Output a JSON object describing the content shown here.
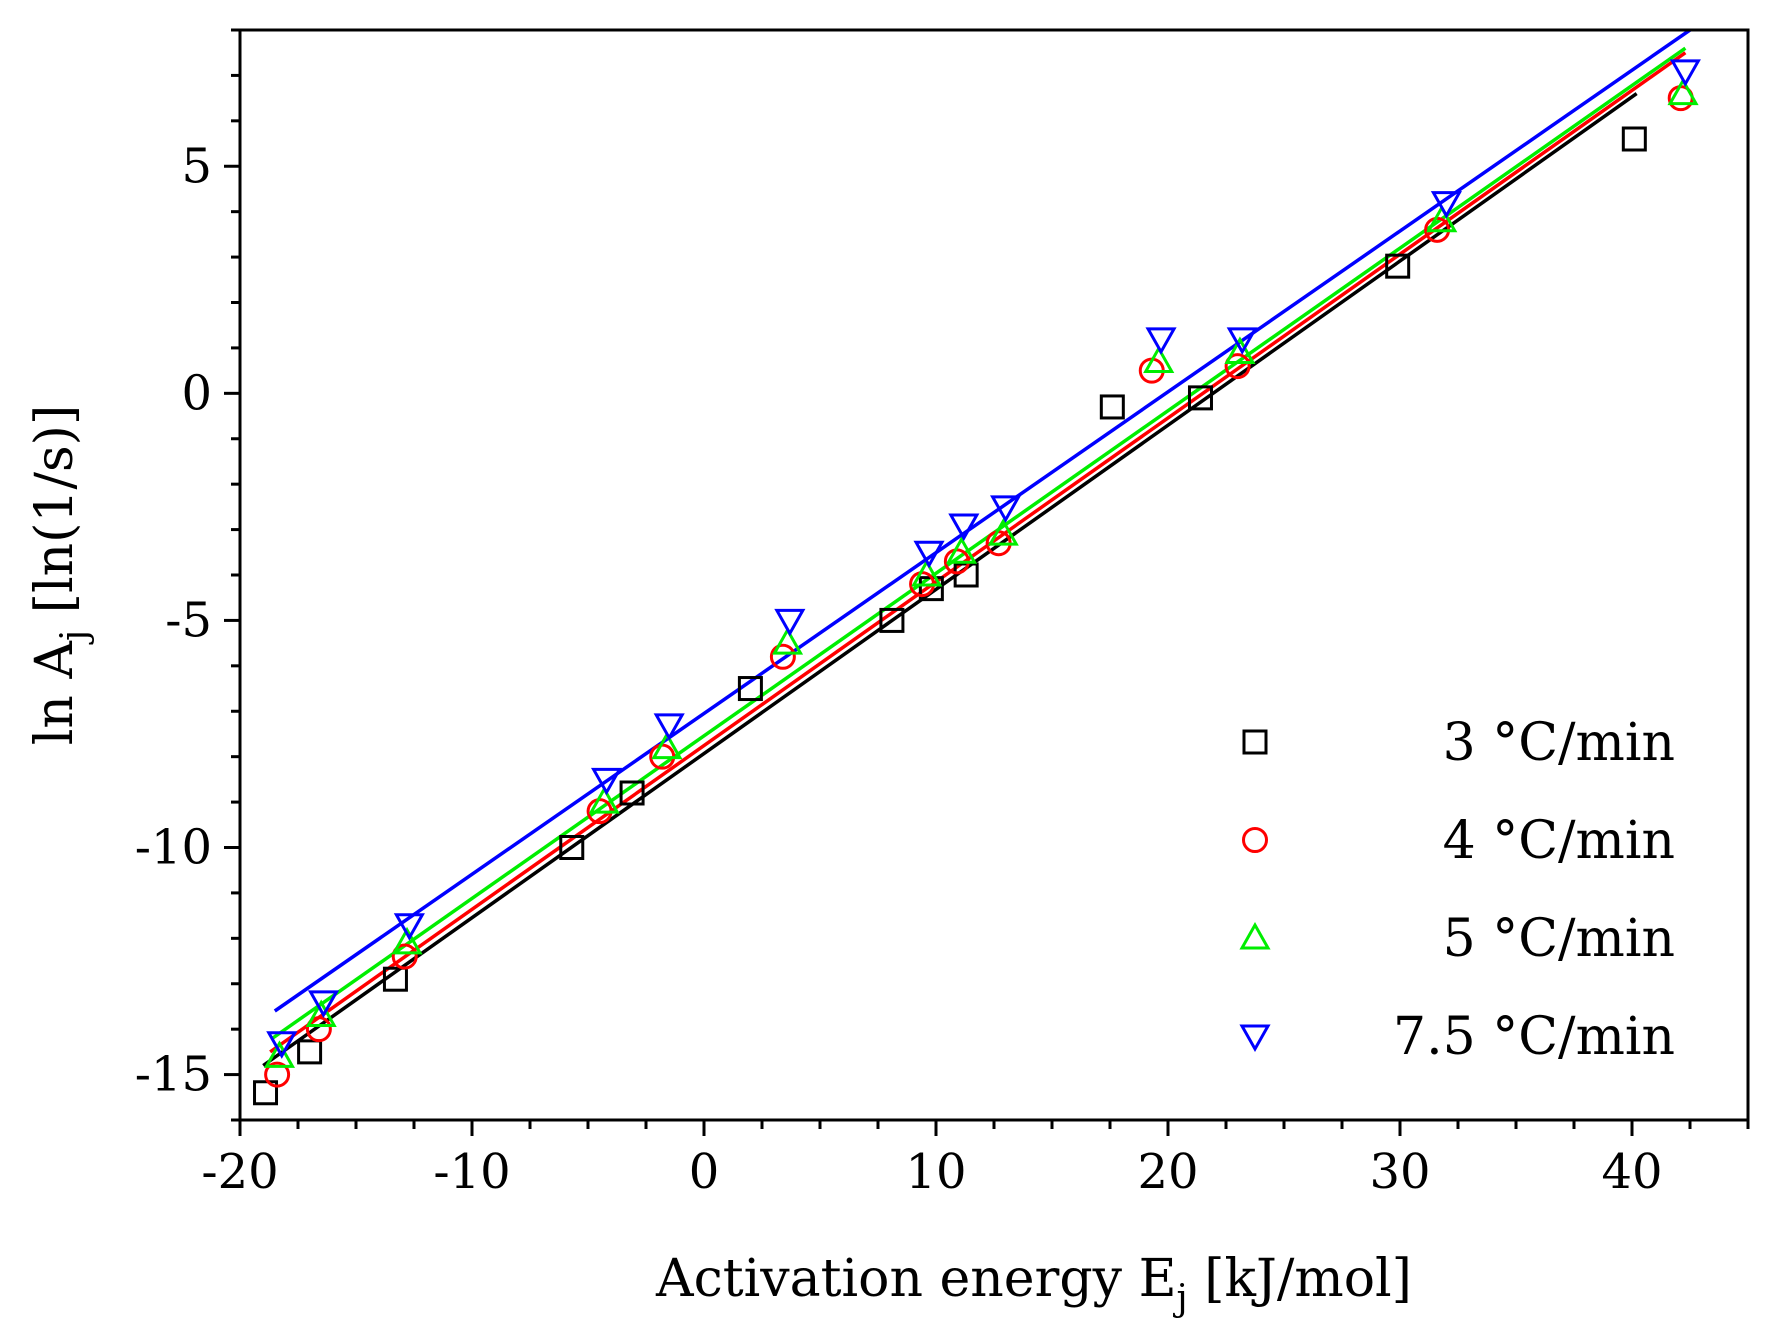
{
  "chart_data": {
    "type": "scatter",
    "title": "",
    "xlabel": {
      "main": "Activation energy E",
      "sub": "j",
      "tail": " [kJ/mol]"
    },
    "ylabel": {
      "main": "ln A",
      "sub": "j",
      "tail": " [ln(1/s)]"
    },
    "xlim": [
      -20,
      45
    ],
    "ylim": [
      -16,
      8
    ],
    "x_ticks": [
      -20,
      -10,
      0,
      10,
      20,
      30,
      40
    ],
    "x_tick_labels": [
      "-20",
      "-10",
      "0",
      "10",
      "20",
      "30",
      "40"
    ],
    "y_ticks": [
      -15,
      -10,
      -5,
      0,
      5
    ],
    "y_tick_labels": [
      "-15",
      "-10",
      "-5",
      "0",
      "5"
    ],
    "x_minor_step": 2.5,
    "y_minor_step": 1,
    "grid": false,
    "legend_position": "bottom-right",
    "series": [
      {
        "name": "3 °C/min",
        "marker": "square",
        "color": "#000000",
        "x": [
          -18.9,
          -17.0,
          -13.3,
          -5.7,
          -3.1,
          2.0,
          8.1,
          9.8,
          11.3,
          17.6,
          21.4,
          29.9,
          40.1
        ],
        "y": [
          -15.4,
          -14.5,
          -12.9,
          -10.0,
          -8.8,
          -6.5,
          -5.0,
          -4.3,
          -4.0,
          -0.3,
          -0.1,
          2.8,
          5.6
        ],
        "fit": {
          "x": [
            -19.0,
            40.2
          ],
          "y": [
            -14.8,
            6.6
          ]
        }
      },
      {
        "name": "4 °C/min",
        "marker": "circle",
        "color": "#ff0000",
        "x": [
          -18.4,
          -16.6,
          -12.9,
          -4.5,
          -1.8,
          3.4,
          9.4,
          10.9,
          12.7,
          19.3,
          23.0,
          31.6,
          42.1
        ],
        "y": [
          -15.0,
          -14.0,
          -12.4,
          -9.2,
          -8.0,
          -5.8,
          -4.2,
          -3.7,
          -3.3,
          0.5,
          0.6,
          3.6,
          6.5
        ],
        "fit": {
          "x": [
            -18.7,
            42.3
          ],
          "y": [
            -14.5,
            7.5
          ]
        }
      },
      {
        "name": "5 °C/min",
        "marker": "triangle-up",
        "color": "#00ee00",
        "x": [
          -18.3,
          -16.5,
          -12.8,
          -4.3,
          -1.6,
          3.6,
          9.6,
          11.1,
          12.9,
          19.6,
          23.1,
          31.8,
          42.2
        ],
        "y": [
          -14.6,
          -13.7,
          -12.1,
          -9.0,
          -7.8,
          -5.5,
          -4.0,
          -3.5,
          -3.1,
          0.7,
          0.9,
          3.8,
          6.6
        ],
        "fit": {
          "x": [
            -18.6,
            42.3
          ],
          "y": [
            -14.2,
            7.6
          ]
        }
      },
      {
        "name": "7.5 °C/min",
        "marker": "triangle-down",
        "color": "#0000ff",
        "x": [
          -18.2,
          -16.4,
          -12.7,
          -4.2,
          -1.5,
          3.7,
          9.7,
          11.2,
          13.0,
          19.7,
          23.2,
          32.0,
          42.3
        ],
        "y": [
          -14.3,
          -13.4,
          -11.7,
          -8.5,
          -7.3,
          -5.0,
          -3.5,
          -2.9,
          -2.5,
          1.2,
          1.2,
          4.2,
          7.1
        ],
        "fit": {
          "x": [
            -18.5,
            42.5
          ],
          "y": [
            -13.6,
            8.0
          ]
        }
      }
    ]
  }
}
